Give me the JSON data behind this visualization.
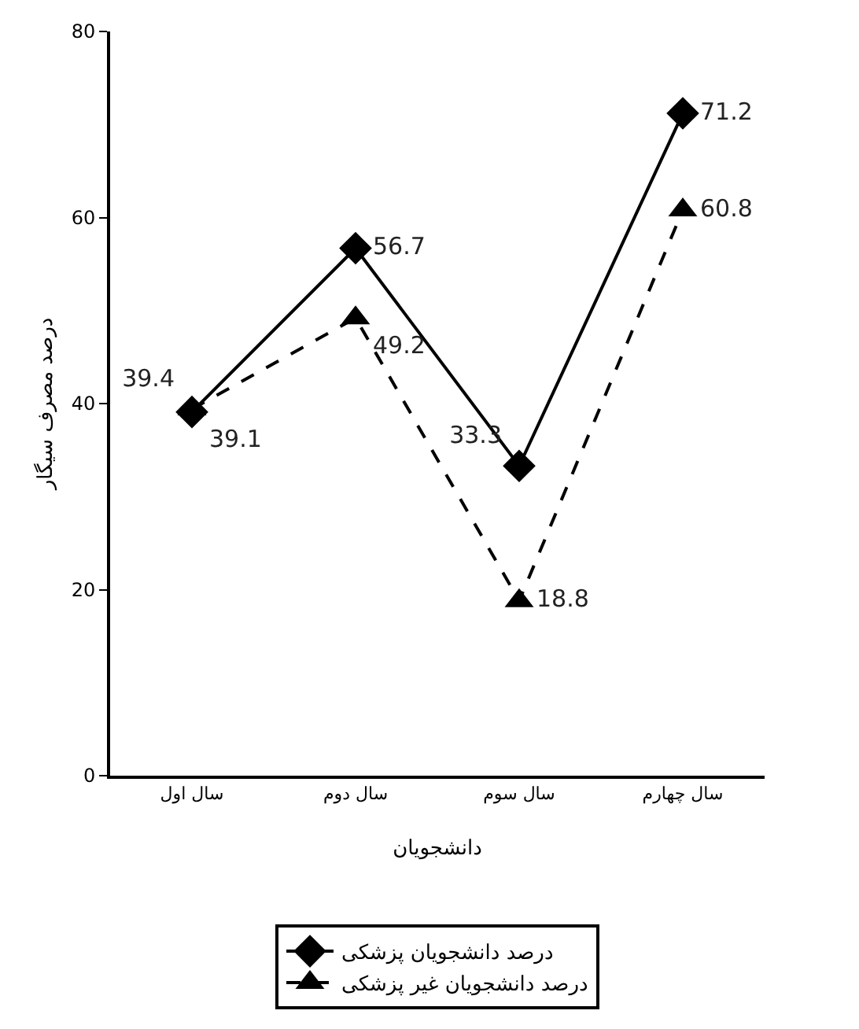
{
  "chart_data": {
    "type": "line",
    "xlabel": "دانشجویان",
    "ylabel": "درصد مصرف سیگار",
    "categories": [
      "سال اول",
      "سال دوم",
      "سال سوم",
      "سال چهارم"
    ],
    "series": [
      {
        "name": "درصد دانشجویان پزشکی",
        "color": "#000000",
        "values": [
          39.1,
          56.7,
          33.3,
          71.2
        ],
        "marker": "diamond",
        "line_style": "solid"
      },
      {
        "name": "درصد دانشجویان غیر پزشکی",
        "color": "#000000",
        "values": [
          39.4,
          49.2,
          18.8,
          60.8
        ],
        "marker": "triangle",
        "line_style": "dashed"
      }
    ],
    "ylim": [
      0,
      80
    ],
    "yticks": [
      0,
      20,
      40,
      60,
      80
    ],
    "grid": false,
    "legend": "bottom",
    "data_labels": true
  }
}
